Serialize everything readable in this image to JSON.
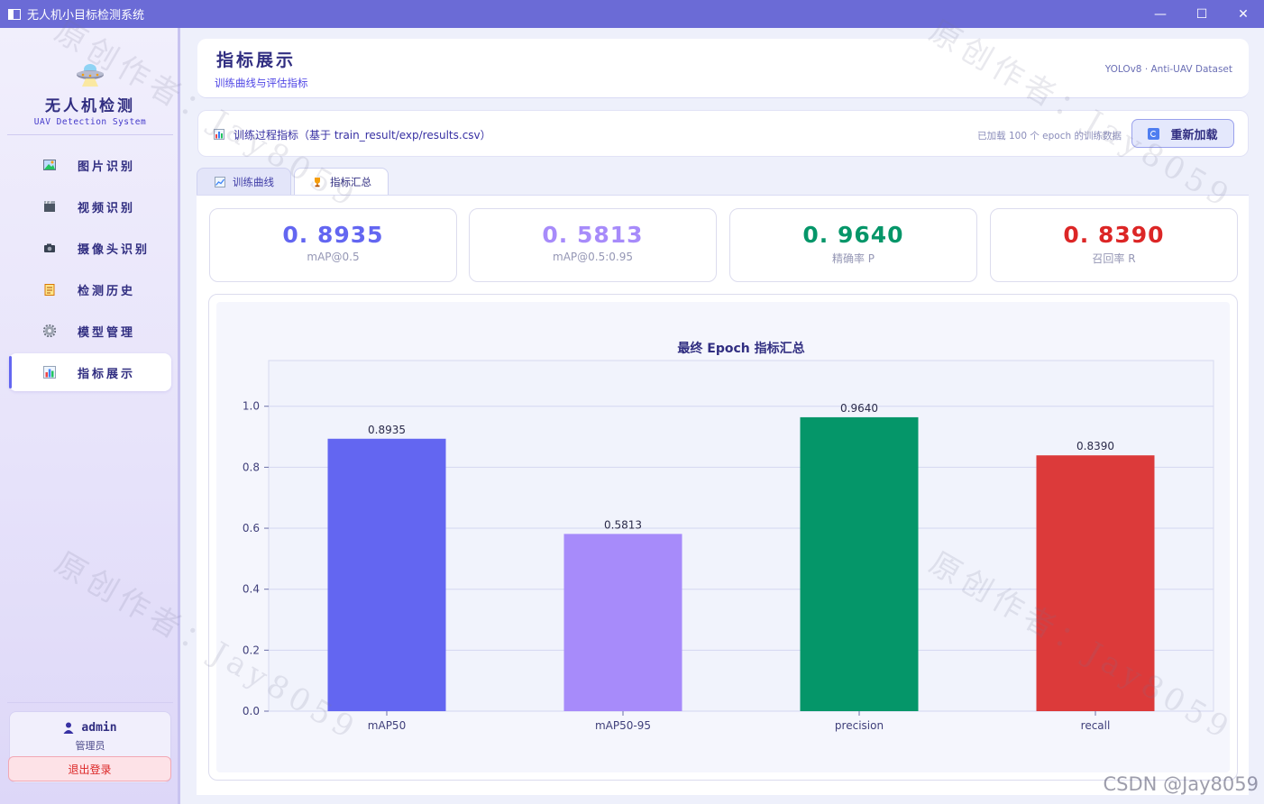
{
  "window": {
    "title": "无人机小目标检测系统",
    "min": "—",
    "max": "☐",
    "close": "✕"
  },
  "sidebar": {
    "logo_title": "无人机检测",
    "logo_sub": "UAV Detection System",
    "items": [
      {
        "label": "图片识别",
        "icon": "image-icon",
        "color": "#22c55e"
      },
      {
        "label": "视频识别",
        "icon": "video-icon",
        "color": "#4b5563"
      },
      {
        "label": "摄像头识别",
        "icon": "camera-icon",
        "color": "#374151"
      },
      {
        "label": "检测历史",
        "icon": "history-icon",
        "color": "#d97706"
      },
      {
        "label": "模型管理",
        "icon": "gear-icon",
        "color": "#6b7280"
      },
      {
        "label": "指标展示",
        "icon": "bar-chart-icon",
        "color": "#3b82f6"
      }
    ],
    "user": {
      "name": "admin",
      "role": "管理员",
      "logout": "退出登录"
    }
  },
  "header": {
    "title": "指标展示",
    "subtitle": "训练曲线与评估指标",
    "right": "YOLOv8 · Anti-UAV Dataset"
  },
  "toolbar": {
    "label": "训练过程指标（基于 train_result/exp/results.csv）",
    "status": "已加载 100 个 epoch 的训练数据",
    "reload": "重新加载"
  },
  "tabs": [
    {
      "label": "训练曲线"
    },
    {
      "label": "指标汇总"
    }
  ],
  "metrics": [
    {
      "value": "0. 8935",
      "label": "mAP@0.5",
      "color": "#6366f1"
    },
    {
      "value": "0. 5813",
      "label": "mAP@0.5:0.95",
      "color": "#a78bfa"
    },
    {
      "value": "0. 9640",
      "label": "精确率 P",
      "color": "#059669"
    },
    {
      "value": "0. 8390",
      "label": "召回率 R",
      "color": "#dc2626"
    }
  ],
  "chart_data": {
    "type": "bar",
    "title": "最终 Epoch 指标汇总",
    "categories": [
      "mAP50",
      "mAP50-95",
      "precision",
      "recall"
    ],
    "values": [
      0.8935,
      0.5813,
      0.964,
      0.839
    ],
    "value_labels": [
      "0.8935",
      "0.5813",
      "0.9640",
      "0.8390"
    ],
    "colors": [
      "#6366f1",
      "#a78bfa",
      "#059669",
      "#dc3a3a"
    ],
    "ylim": [
      0,
      1.15
    ],
    "yticks": [
      "0.0",
      "0.2",
      "0.4",
      "0.6",
      "0.8",
      "1.0"
    ],
    "xlabel": "",
    "ylabel": "",
    "grid": true
  },
  "watermarks": [
    "原创作者：Jay8059",
    "原创作者：Jay8059",
    "原创作者：Jay8059",
    "原创作者：Jay8059"
  ],
  "footer": "CSDN @Jay8059"
}
